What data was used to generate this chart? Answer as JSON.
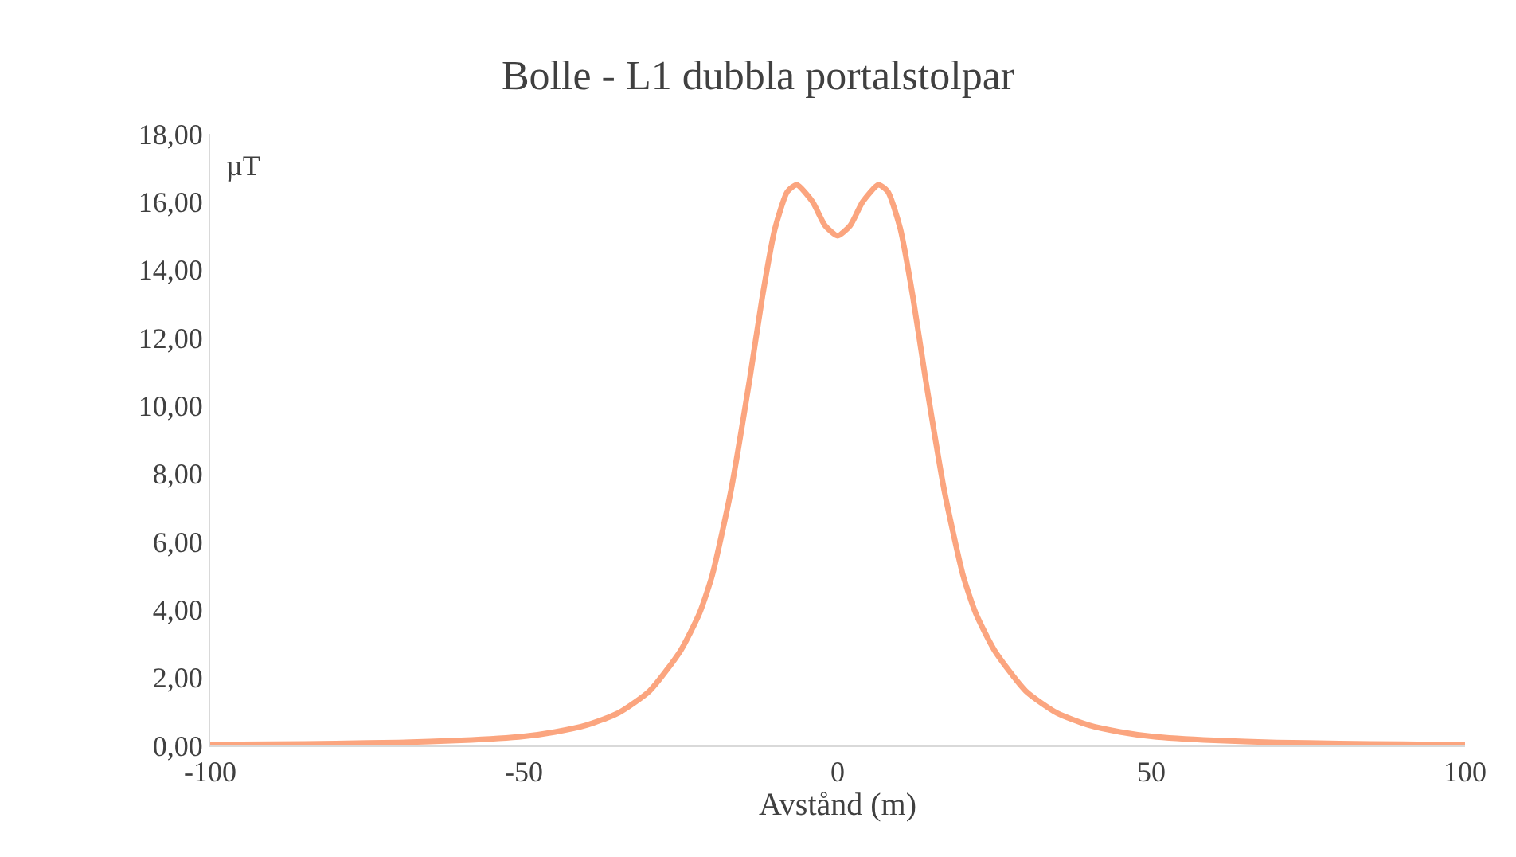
{
  "chart_data": {
    "type": "line",
    "title": "Bolle - L1 dubbla portalstolpar",
    "xlabel": "Avstånd (m)",
    "ylabel": "µT",
    "x": [
      -100,
      -90,
      -80,
      -70,
      -60,
      -50,
      -45,
      -40,
      -35,
      -30,
      -25,
      -22,
      -20,
      -17,
      -14,
      -12,
      -10,
      -8,
      -6.5,
      -4,
      -2,
      0,
      2,
      4,
      6.5,
      8,
      10,
      12,
      14,
      17,
      20,
      22,
      25,
      30,
      35,
      40,
      45,
      50,
      60,
      70,
      80,
      90,
      100
    ],
    "series": [
      {
        "color": "#fba57f",
        "values": [
          0.03,
          0.04,
          0.06,
          0.09,
          0.15,
          0.27,
          0.4,
          0.6,
          0.95,
          1.6,
          2.8,
          3.9,
          5.0,
          7.5,
          10.8,
          13.2,
          15.2,
          16.3,
          16.5,
          16.0,
          15.3,
          15.0,
          15.3,
          16.0,
          16.5,
          16.3,
          15.2,
          13.2,
          10.8,
          7.5,
          5.0,
          3.9,
          2.8,
          1.6,
          0.95,
          0.6,
          0.4,
          0.27,
          0.15,
          0.09,
          0.06,
          0.04,
          0.03
        ]
      }
    ],
    "xlim": [
      -100,
      100
    ],
    "xticks": [
      -100,
      -50,
      0,
      50,
      100
    ],
    "ylim": [
      0,
      18
    ],
    "yticks": [
      {
        "value": 0,
        "label": "0,00"
      },
      {
        "value": 2,
        "label": "2,00"
      },
      {
        "value": 4,
        "label": "4,00"
      },
      {
        "value": 6,
        "label": "6,00"
      },
      {
        "value": 8,
        "label": "8,00"
      },
      {
        "value": 10,
        "label": "10,00"
      },
      {
        "value": 12,
        "label": "12,00"
      },
      {
        "value": 14,
        "label": "14,00"
      },
      {
        "value": 16,
        "label": "16,00"
      },
      {
        "value": 18,
        "label": "18,00"
      }
    ],
    "marker": "none"
  }
}
